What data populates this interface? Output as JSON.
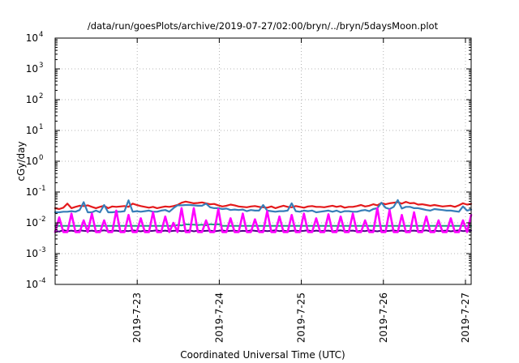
{
  "chart_data": {
    "type": "line",
    "title": "/data/run/goesPlots/archive/2019-07-27/02:00/bryn/../bryn/5daysMoon.plot",
    "xlabel": "Coordinated Universal Time (UTC)",
    "ylabel": "cGy/day",
    "yscale": "log",
    "ylim_exponents": [
      -4,
      4
    ],
    "y_ticks": [
      {
        "base": "10",
        "exp": "-4"
      },
      {
        "base": "10",
        "exp": "-3"
      },
      {
        "base": "10",
        "exp": "-2"
      },
      {
        "base": "10",
        "exp": "-1"
      },
      {
        "base": "10",
        "exp": "0"
      },
      {
        "base": "10",
        "exp": "1"
      },
      {
        "base": "10",
        "exp": "2"
      },
      {
        "base": "10",
        "exp": "3"
      },
      {
        "base": "10",
        "exp": "4"
      }
    ],
    "xlim": [
      "2019-07-22T00:00",
      "2019-07-27T01:40"
    ],
    "x_ticks": [
      "2019-7-23",
      "2019-7-24",
      "2019-7-25",
      "2019-7-26",
      "2019-7-27"
    ],
    "grid": true,
    "series": [
      {
        "color": "#e41a1c",
        "values": [
          0.03,
          0.028,
          0.031,
          0.042,
          0.03,
          0.033,
          0.036,
          0.035,
          0.037,
          0.033,
          0.03,
          0.033,
          0.036,
          0.03,
          0.034,
          0.033,
          0.034,
          0.035,
          0.033,
          0.042,
          0.038,
          0.035,
          0.033,
          0.031,
          0.033,
          0.03,
          0.032,
          0.034,
          0.033,
          0.035,
          0.038,
          0.045,
          0.049,
          0.046,
          0.043,
          0.044,
          0.046,
          0.043,
          0.04,
          0.041,
          0.037,
          0.034,
          0.036,
          0.039,
          0.037,
          0.034,
          0.033,
          0.032,
          0.034,
          0.035,
          0.033,
          0.032,
          0.031,
          0.034,
          0.03,
          0.033,
          0.036,
          0.033,
          0.032,
          0.035,
          0.033,
          0.031,
          0.034,
          0.035,
          0.033,
          0.033,
          0.032,
          0.034,
          0.036,
          0.033,
          0.035,
          0.031,
          0.033,
          0.033,
          0.035,
          0.038,
          0.034,
          0.036,
          0.04,
          0.037,
          0.044,
          0.04,
          0.043,
          0.045,
          0.047,
          0.042,
          0.048,
          0.043,
          0.044,
          0.039,
          0.04,
          0.038,
          0.036,
          0.038,
          0.036,
          0.034,
          0.035,
          0.036,
          0.033,
          0.037,
          0.043,
          0.039,
          0.041
        ]
      },
      {
        "color": "#377eb8",
        "values": [
          0.022,
          0.022,
          0.023,
          0.023,
          0.024,
          0.023,
          0.026,
          0.047,
          0.022,
          0.022,
          0.025,
          0.022,
          0.038,
          0.022,
          0.022,
          0.023,
          0.023,
          0.024,
          0.054,
          0.023,
          0.024,
          0.023,
          0.024,
          0.025,
          0.023,
          0.023,
          0.025,
          0.026,
          0.023,
          0.03,
          0.037,
          0.037,
          0.038,
          0.038,
          0.037,
          0.036,
          0.036,
          0.042,
          0.032,
          0.03,
          0.03,
          0.028,
          0.029,
          0.026,
          0.027,
          0.026,
          0.027,
          0.024,
          0.026,
          0.025,
          0.025,
          0.038,
          0.025,
          0.024,
          0.023,
          0.024,
          0.024,
          0.025,
          0.043,
          0.024,
          0.023,
          0.025,
          0.024,
          0.025,
          0.022,
          0.023,
          0.024,
          0.025,
          0.023,
          0.025,
          0.022,
          0.024,
          0.024,
          0.023,
          0.023,
          0.025,
          0.026,
          0.024,
          0.028,
          0.03,
          0.045,
          0.031,
          0.028,
          0.033,
          0.055,
          0.029,
          0.033,
          0.033,
          0.03,
          0.03,
          0.028,
          0.026,
          0.025,
          0.028,
          0.027,
          0.026,
          0.025,
          0.025,
          0.024,
          0.023,
          0.034,
          0.025,
          0.027
        ]
      },
      {
        "color": "#1b9e77",
        "values": [
          0.008,
          0.008,
          0.008,
          0.008,
          0.008,
          0.008,
          0.008,
          0.008,
          0.008,
          0.008,
          0.008,
          0.008,
          0.008,
          0.008,
          0.008,
          0.008,
          0.008,
          0.008,
          0.008,
          0.008,
          0.008,
          0.008,
          0.008,
          0.008,
          0.008,
          0.008,
          0.008,
          0.008,
          0.008,
          0.008,
          0.0085,
          0.0082,
          0.009,
          0.0088,
          0.0087,
          0.0085,
          0.0087,
          0.0083,
          0.009,
          0.0088,
          0.009,
          0.008,
          0.008,
          0.008,
          0.008,
          0.008,
          0.008,
          0.008,
          0.008,
          0.008,
          0.008,
          0.008,
          0.008,
          0.008,
          0.008,
          0.008,
          0.008,
          0.008,
          0.008,
          0.008,
          0.008,
          0.008,
          0.008,
          0.008,
          0.008,
          0.008,
          0.008,
          0.008,
          0.008,
          0.008,
          0.008,
          0.008,
          0.008,
          0.008,
          0.008,
          0.008,
          0.008,
          0.008,
          0.008,
          0.008,
          0.008,
          0.008,
          0.008,
          0.008,
          0.008,
          0.008,
          0.008,
          0.008,
          0.008,
          0.008,
          0.008,
          0.008,
          0.008,
          0.008,
          0.008,
          0.008,
          0.008,
          0.008,
          0.008,
          0.008,
          0.008,
          0.008,
          0.008
        ]
      },
      {
        "color": "#4b0082",
        "values": [
          0.0055,
          0.0052,
          0.0058,
          0.0054,
          0.0056,
          0.0053,
          0.0057,
          0.0055,
          0.0054,
          0.0056,
          0.0053,
          0.0055,
          0.0057,
          0.0054,
          0.0055,
          0.0056,
          0.0053,
          0.0055,
          0.0054,
          0.0057,
          0.0055,
          0.0053,
          0.0056,
          0.0054,
          0.0055,
          0.0057,
          0.0054,
          0.0056,
          0.0053,
          0.0055,
          0.0056,
          0.0054,
          0.0055,
          0.0057,
          0.0053,
          0.0056,
          0.0054,
          0.0055,
          0.0056,
          0.0053,
          0.0055,
          0.0057,
          0.0054,
          0.0055,
          0.0056,
          0.0053,
          0.0055,
          0.0054,
          0.0057,
          0.0055,
          0.0053,
          0.0056,
          0.0054,
          0.0055,
          0.0057,
          0.0054,
          0.0056,
          0.0053,
          0.0055,
          0.0056,
          0.0054,
          0.0055,
          0.0057,
          0.0053,
          0.0056,
          0.0054,
          0.0055,
          0.0056,
          0.0053,
          0.0055,
          0.0057,
          0.0054,
          0.0055,
          0.0056,
          0.0053,
          0.0055,
          0.0054,
          0.0057,
          0.0055,
          0.0053,
          0.0056,
          0.0054,
          0.0055,
          0.0057,
          0.0054,
          0.0056,
          0.0053,
          0.0055,
          0.0056,
          0.0054,
          0.0055,
          0.0057,
          0.0053,
          0.0056,
          0.0054,
          0.0055,
          0.0056,
          0.0053,
          0.0055,
          0.0057,
          0.0054,
          0.0055,
          0.0056
        ]
      },
      {
        "color": "#ff00ff",
        "values": [
          0.005,
          0.015,
          0.005,
          0.005,
          0.02,
          0.005,
          0.005,
          0.012,
          0.005,
          0.02,
          0.005,
          0.005,
          0.012,
          0.005,
          0.005,
          0.025,
          0.005,
          0.005,
          0.018,
          0.005,
          0.005,
          0.014,
          0.005,
          0.005,
          0.022,
          0.005,
          0.005,
          0.016,
          0.005,
          0.01,
          0.005,
          0.03,
          0.005,
          0.005,
          0.03,
          0.005,
          0.005,
          0.012,
          0.005,
          0.005,
          0.028,
          0.005,
          0.005,
          0.014,
          0.005,
          0.005,
          0.02,
          0.005,
          0.005,
          0.013,
          0.005,
          0.005,
          0.024,
          0.005,
          0.005,
          0.016,
          0.005,
          0.005,
          0.018,
          0.005,
          0.005,
          0.02,
          0.005,
          0.005,
          0.014,
          0.005,
          0.005,
          0.019,
          0.005,
          0.005,
          0.016,
          0.005,
          0.005,
          0.02,
          0.005,
          0.005,
          0.012,
          0.005,
          0.005,
          0.03,
          0.005,
          0.005,
          0.026,
          0.005,
          0.005,
          0.018,
          0.005,
          0.005,
          0.022,
          0.005,
          0.005,
          0.016,
          0.005,
          0.005,
          0.012,
          0.005,
          0.005,
          0.014,
          0.005,
          0.005,
          0.012,
          0.005,
          0.018
        ]
      }
    ]
  }
}
